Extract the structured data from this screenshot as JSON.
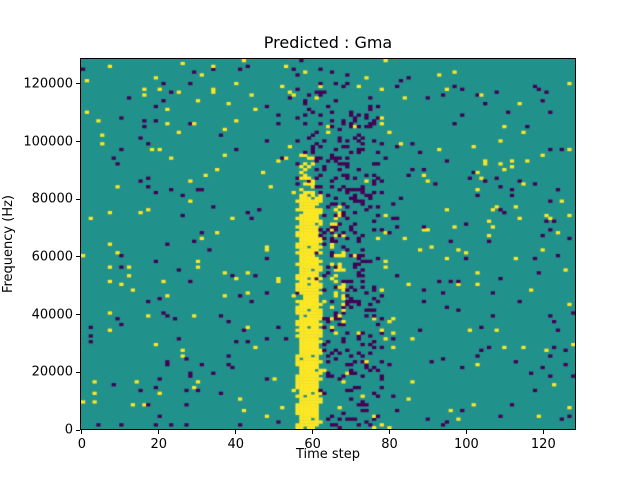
{
  "figure": {
    "title": "Predicted : Gma",
    "xlabel": "Time step",
    "ylabel": "Frequency (Hz)"
  },
  "chart_data": {
    "type": "heatmap",
    "title": "Predicted : Gma",
    "xlabel": "Time step",
    "ylabel": "Frequency (Hz)",
    "x_range": [
      -0.5,
      128.5
    ],
    "y_range": [
      0,
      129000
    ],
    "x_ticks": [
      0,
      20,
      40,
      60,
      80,
      100,
      120
    ],
    "y_ticks": [
      0,
      20000,
      40000,
      60000,
      80000,
      100000,
      120000
    ],
    "grid": {
      "ncols": 129,
      "nrows": 129
    },
    "grid_lines": false,
    "legend": null,
    "colormap": {
      "low": "#440154",
      "mid": "#21918c",
      "high": "#fde725"
    },
    "base_color": "#21918c",
    "seed": 42,
    "regions": [
      {
        "name": "background-yellow-noise",
        "color": "#fde725",
        "x": [
          -0.5,
          128.5
        ],
        "y": [
          0,
          129000
        ],
        "prob": 0.015
      },
      {
        "name": "background-purple-noise",
        "color": "#440154",
        "x": [
          -0.5,
          128.5
        ],
        "y": [
          0,
          129000
        ],
        "prob": 0.015
      },
      {
        "name": "purple-cluster-right-of-band",
        "color": "#440154",
        "x": [
          59,
          78
        ],
        "y": [
          0,
          115000
        ],
        "prob": 0.1
      },
      {
        "name": "purple-cluster-core",
        "color": "#440154",
        "x": [
          61,
          73
        ],
        "y": [
          18000,
          95000
        ],
        "prob": 0.1
      },
      {
        "name": "yellow-band-outer",
        "color": "#fde725",
        "x": [
          56,
          62.5
        ],
        "y": [
          0,
          82000
        ],
        "prob": 0.5
      },
      {
        "name": "yellow-band-core",
        "color": "#fde725",
        "x": [
          56.5,
          61.5
        ],
        "y": [
          1500,
          80000
        ],
        "prob": 0.93
      },
      {
        "name": "yellow-band-upper-tail",
        "color": "#fde725",
        "x": [
          57,
          60.5
        ],
        "y": [
          80000,
          96000
        ],
        "prob": 0.35
      },
      {
        "name": "yellow-streak-right",
        "color": "#fde725",
        "x": [
          65,
          68
        ],
        "y": [
          35000,
          78000
        ],
        "prob": 0.25
      },
      {
        "name": "purple-speckle-above-band",
        "color": "#440154",
        "x": [
          55,
          71
        ],
        "y": [
          95000,
          126000
        ],
        "prob": 0.07
      }
    ]
  }
}
